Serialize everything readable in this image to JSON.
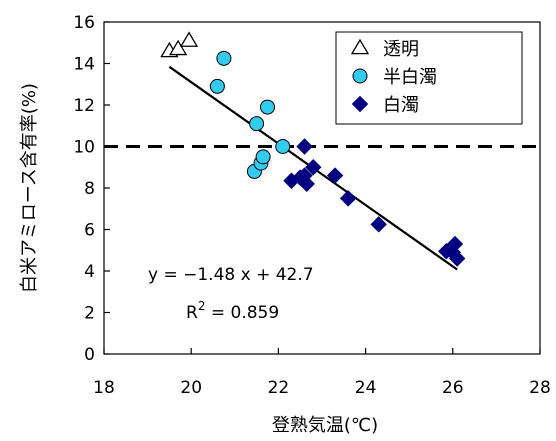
{
  "chart_data": {
    "type": "scatter",
    "xlabel": "登熟気温(℃)",
    "ylabel": "白米アミロース含有率(%)",
    "xlim": [
      18,
      28
    ],
    "ylim": [
      0,
      16
    ],
    "x_ticks": [
      "18",
      "20",
      "22",
      "24",
      "26",
      "28"
    ],
    "y_ticks": [
      "0",
      "2",
      "4",
      "6",
      "8",
      "10",
      "12",
      "14",
      "16"
    ],
    "grid": false,
    "legend_position": "top-right",
    "reference_line": {
      "y": 10,
      "style": "dashed"
    },
    "series": [
      {
        "name": "透明",
        "marker": "triangle-open",
        "color": "#000000",
        "points": [
          [
            19.5,
            14.6
          ],
          [
            19.7,
            14.7
          ],
          [
            19.95,
            15.1
          ]
        ]
      },
      {
        "name": "半白濁",
        "marker": "circle",
        "color": "#33ccee",
        "points": [
          [
            20.6,
            12.9
          ],
          [
            20.75,
            14.25
          ],
          [
            21.5,
            11.1
          ],
          [
            21.75,
            11.9
          ],
          [
            21.45,
            8.8
          ],
          [
            21.6,
            9.2
          ],
          [
            21.65,
            9.5
          ],
          [
            22.1,
            10.0
          ]
        ]
      },
      {
        "name": "白濁",
        "marker": "diamond",
        "color": "#000080",
        "points": [
          [
            22.3,
            8.35
          ],
          [
            22.5,
            8.5
          ],
          [
            22.6,
            10.0
          ],
          [
            22.65,
            8.2
          ],
          [
            22.6,
            8.6
          ],
          [
            22.8,
            9.0
          ],
          [
            23.3,
            8.6
          ],
          [
            23.6,
            7.5
          ],
          [
            24.3,
            6.25
          ],
          [
            25.85,
            4.95
          ],
          [
            26.0,
            4.9
          ],
          [
            26.05,
            5.3
          ],
          [
            26.1,
            4.6
          ]
        ]
      }
    ],
    "regression": {
      "slope": -1.48,
      "intercept": 42.7,
      "x_range": [
        19.5,
        26.1
      ],
      "equation": "y = −1.48 x + 42.7",
      "r2_label": "R",
      "r2_exp": "2",
      "r2_value": " = 0.859"
    }
  }
}
